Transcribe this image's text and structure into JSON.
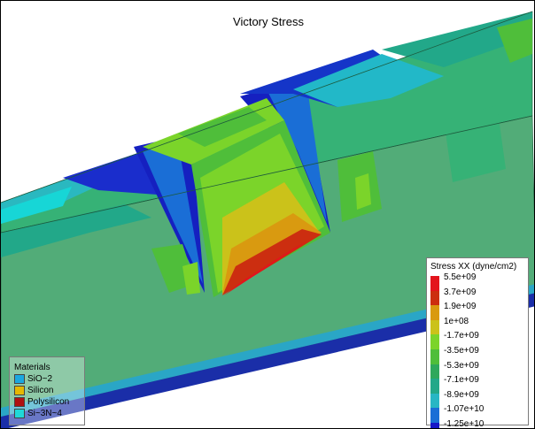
{
  "title": "Victory Stress",
  "stress_legend": {
    "title": "Stress XX (dyne/cm2)",
    "levels": [
      {
        "label": "5.5e+09",
        "color": "#e3141c"
      },
      {
        "label": "3.7e+09",
        "color": "#cc2e10"
      },
      {
        "label": "1.9e+09",
        "color": "#d99a10"
      },
      {
        "label": "1e+08",
        "color": "#cbc21a"
      },
      {
        "label": "-1.7e+09",
        "color": "#7bd42a"
      },
      {
        "label": "-3.5e+09",
        "color": "#4fbe3a"
      },
      {
        "label": "-5.3e+09",
        "color": "#2ea85c"
      },
      {
        "label": "-7.1e+09",
        "color": "#22a889"
      },
      {
        "label": "-8.9e+09",
        "color": "#27b6c4"
      },
      {
        "label": "-1.07e+10",
        "color": "#1a6ed6"
      },
      {
        "label": "-1.25e+10",
        "color": "#1616c8"
      }
    ]
  },
  "materials_legend": {
    "title": "Materials",
    "items": [
      {
        "label": "SiO~2",
        "color": "#1ba7e0"
      },
      {
        "label": "Silicon",
        "color": "#e6b800"
      },
      {
        "label": "Polysilicon",
        "color": "#b01010"
      },
      {
        "label": "Si~3N~4",
        "color": "#20d8d8"
      }
    ]
  },
  "colors": {
    "top_face": "#36b276",
    "front_face": "#52ac78",
    "edge": "#14248c"
  }
}
